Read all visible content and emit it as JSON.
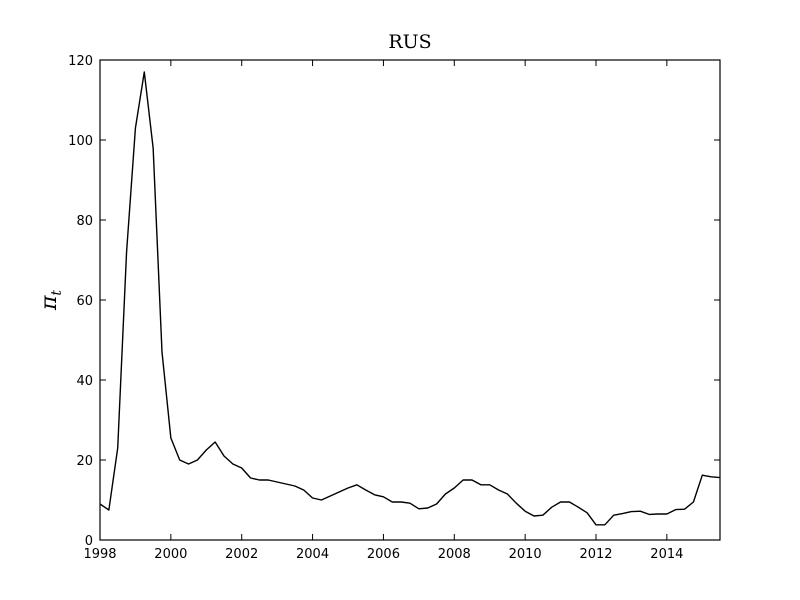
{
  "chart_data": {
    "type": "line",
    "title": "RUS",
    "xlabel": "",
    "ylabel": "π",
    "ylabel_subscript": "t",
    "xlim": [
      1998,
      2015.5
    ],
    "ylim": [
      0,
      120
    ],
    "xticks": [
      1998,
      2000,
      2002,
      2004,
      2006,
      2008,
      2010,
      2012,
      2014
    ],
    "yticks": [
      0,
      20,
      40,
      60,
      80,
      100,
      120
    ],
    "grid": false,
    "line_color": "#000000",
    "series": [
      {
        "x": [
          1998.0,
          1998.25,
          1998.5,
          1998.75,
          1999.0,
          1999.25,
          1999.5,
          1999.75,
          2000.0,
          2000.25,
          2000.5,
          2000.75,
          2001.0,
          2001.25,
          2001.5,
          2001.75,
          2002.0,
          2002.25,
          2002.5,
          2002.75,
          2003.0,
          2003.25,
          2003.5,
          2003.75,
          2004.0,
          2004.25,
          2004.5,
          2004.75,
          2005.0,
          2005.25,
          2005.5,
          2005.75,
          2006.0,
          2006.25,
          2006.5,
          2006.75,
          2007.0,
          2007.25,
          2007.5,
          2007.75,
          2008.0,
          2008.25,
          2008.5,
          2008.75,
          2009.0,
          2009.25,
          2009.5,
          2009.75,
          2010.0,
          2010.25,
          2010.5,
          2010.75,
          2011.0,
          2011.25,
          2011.5,
          2011.75,
          2012.0,
          2012.25,
          2012.5,
          2012.75,
          2013.0,
          2013.25,
          2013.5,
          2013.75,
          2014.0,
          2014.25,
          2014.5,
          2014.75,
          2015.0,
          2015.25,
          2015.5
        ],
        "values": [
          9,
          7.5,
          23,
          72,
          103,
          117,
          98,
          47,
          25.5,
          20,
          19,
          20,
          22.5,
          24.5,
          21,
          19,
          18,
          15.5,
          15,
          15,
          14.5,
          14,
          13.5,
          12.5,
          10.5,
          10,
          11,
          12,
          13,
          13.8,
          12.5,
          11.3,
          10.8,
          9.5,
          9.5,
          9.2,
          7.8,
          8,
          9,
          11.5,
          13,
          15,
          15,
          13.8,
          13.8,
          12.5,
          11.5,
          9.2,
          7.2,
          6,
          6.2,
          8.2,
          9.5,
          9.5,
          8.2,
          6.8,
          3.8,
          3.8,
          6.2,
          6.6,
          7.1,
          7.2,
          6.4,
          6.5,
          6.5,
          7.6,
          7.7,
          9.5,
          16.2,
          15.8,
          15.6
        ]
      }
    ]
  }
}
